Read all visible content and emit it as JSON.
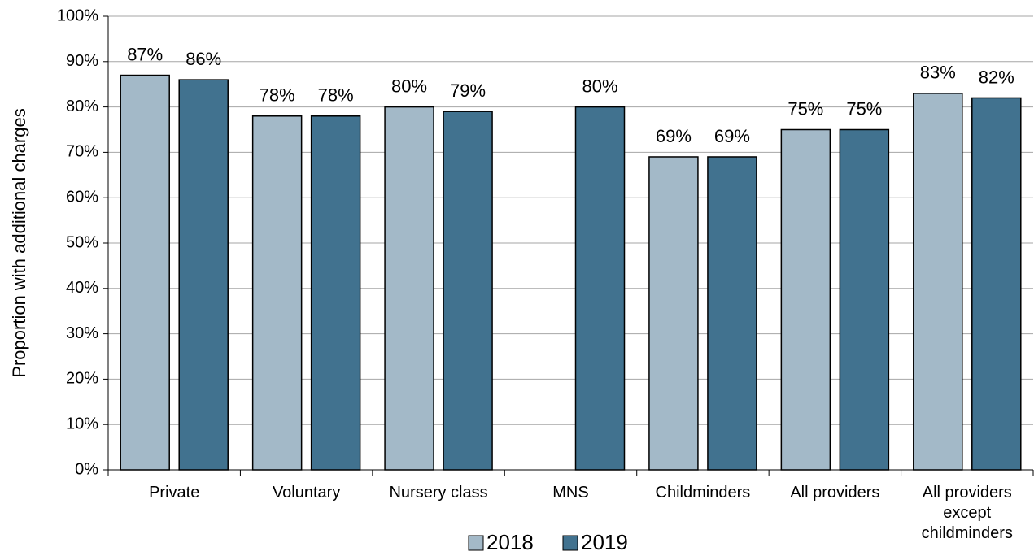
{
  "chart_data": {
    "type": "bar",
    "y_label": "Proportion with additional charges",
    "categories": [
      "Private",
      "Voluntary",
      "Nursery class",
      "MNS",
      "Childminders",
      "All providers",
      "All providers except childminders"
    ],
    "series": [
      {
        "name": "2018",
        "color": "#a3b9c8",
        "values": [
          87,
          78,
          80,
          null,
          69,
          75,
          83
        ],
        "value_labels": [
          "87%",
          "78%",
          "80%",
          null,
          "69%",
          "75%",
          "83%"
        ]
      },
      {
        "name": "2019",
        "color": "#41728f",
        "values": [
          86,
          78,
          79,
          80,
          69,
          75,
          82
        ],
        "value_labels": [
          "86%",
          "78%",
          "79%",
          "80%",
          "69%",
          "75%",
          "82%"
        ]
      }
    ],
    "ylim": [
      0,
      100
    ],
    "yticks": [
      {
        "value": 0,
        "label": "0%"
      },
      {
        "value": 10,
        "label": "10%"
      },
      {
        "value": 20,
        "label": "20%"
      },
      {
        "value": 30,
        "label": "30%"
      },
      {
        "value": 40,
        "label": "40%"
      },
      {
        "value": 50,
        "label": "50%"
      },
      {
        "value": 60,
        "label": "60%"
      },
      {
        "value": 70,
        "label": "70%"
      },
      {
        "value": 80,
        "label": "80%"
      },
      {
        "value": 90,
        "label": "90%"
      },
      {
        "value": 100,
        "label": "100%"
      }
    ],
    "grid": true,
    "legend": "bottom"
  }
}
